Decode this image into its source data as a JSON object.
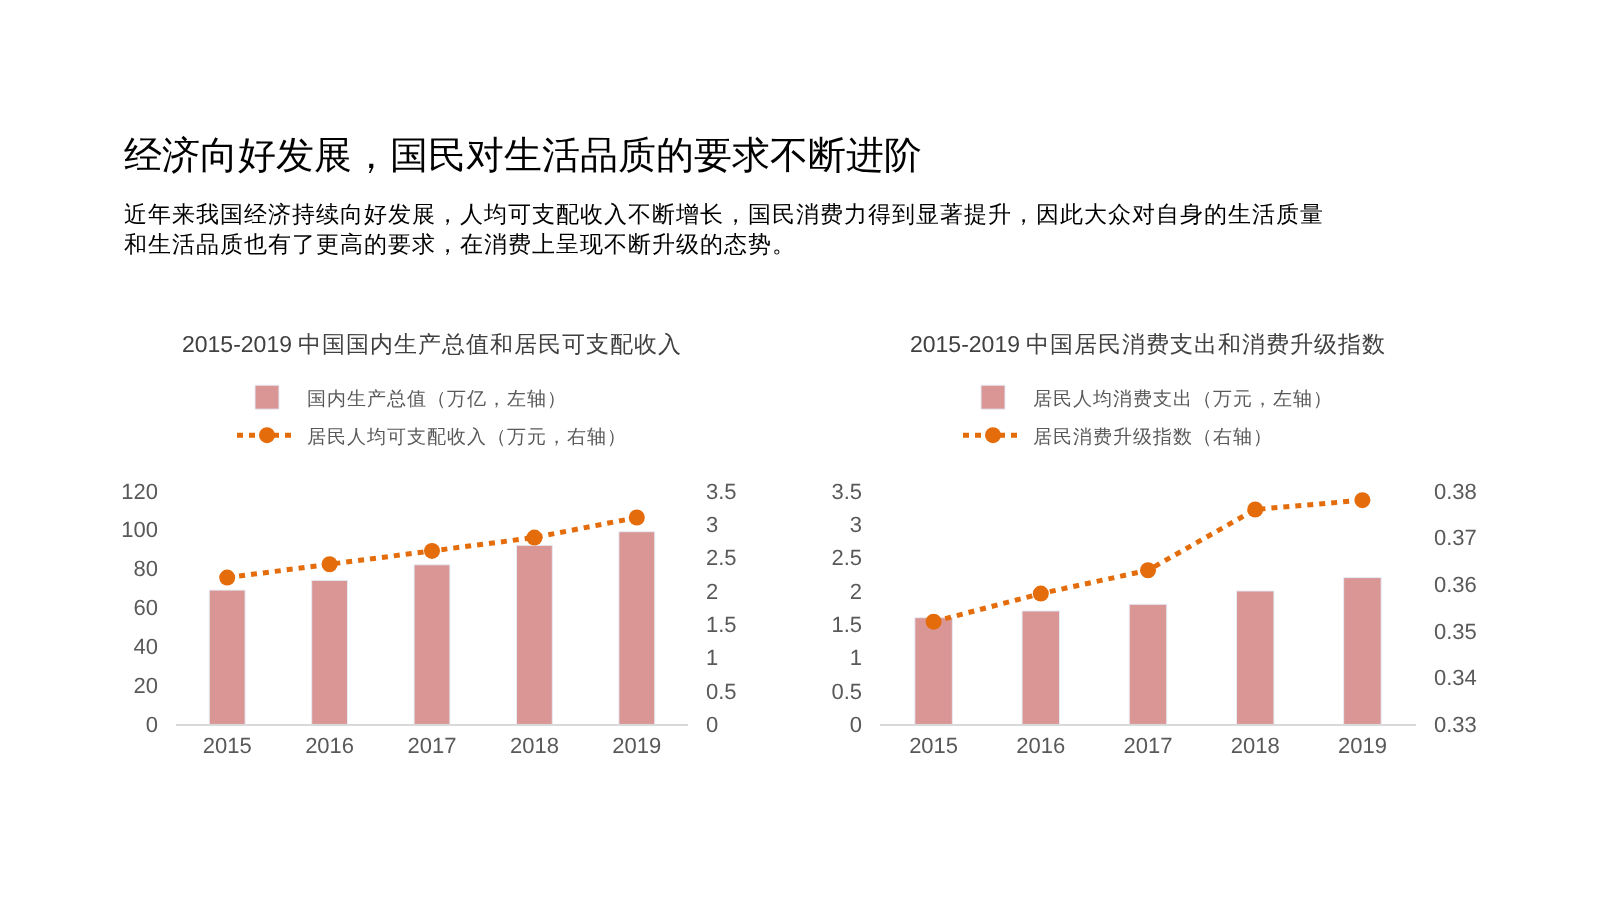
{
  "chart_data": [
    {
      "type": "bar",
      "title": "2015-2019 中国国内生产总值和居民可支配收入",
      "annotations": [
        "经济向好发展，国民对生活品质的要求不断进阶",
        "近年来我国经济持续向好发展，人均可支配收入不断增长，国民消费力得到显著提升，因此大众对自身的生活质量和生活品质也有了更高的要求，在消费上呈现不断升级的态势。"
      ],
      "categories": [
        "2015",
        "2016",
        "2017",
        "2018",
        "2019"
      ],
      "series": [
        {
          "name": "国内生产总值（万亿，左轴）",
          "color": "#d99694",
          "values": [
            69,
            74,
            82,
            92,
            99
          ]
        },
        {
          "name": "居民人均可支配收入（万元，右轴）",
          "type": "line",
          "axis": "y2",
          "color": "#e46c0a",
          "values": [
            2.2,
            2.4,
            2.6,
            2.8,
            3.1
          ]
        }
      ],
      "ylim": [
        0,
        120
      ],
      "yticks": [
        0,
        20,
        40,
        60,
        80,
        100,
        120
      ],
      "y2lim": [
        0,
        3.5
      ],
      "y2ticks": [
        0,
        0.5,
        1,
        1.5,
        2,
        2.5,
        3,
        3.5
      ],
      "marker": "circle",
      "line_style": "dotted",
      "legend": "top"
    },
    {
      "type": "bar",
      "title": "2015-2019 中国居民消费支出和消费升级指数",
      "categories": [
        "2015",
        "2016",
        "2017",
        "2018",
        "2019"
      ],
      "series": [
        {
          "name": "居民人均消费支出（万元，左轴）",
          "color": "#d99694",
          "values": [
            1.6,
            1.7,
            1.8,
            2.0,
            2.2
          ]
        },
        {
          "name": "居民消费升级指数（右轴）",
          "type": "line",
          "axis": "y2",
          "color": "#e46c0a",
          "values": [
            0.352,
            0.358,
            0.363,
            0.376,
            0.378
          ]
        }
      ],
      "ylim": [
        0,
        3.5
      ],
      "yticks": [
        0,
        0.5,
        1,
        1.5,
        2,
        2.5,
        3,
        3.5
      ],
      "y2lim": [
        0.33,
        0.38
      ],
      "y2ticks": [
        0.33,
        0.34,
        0.35,
        0.36,
        0.37,
        0.38
      ],
      "marker": "circle",
      "line_style": "dotted",
      "legend": "top"
    }
  ]
}
